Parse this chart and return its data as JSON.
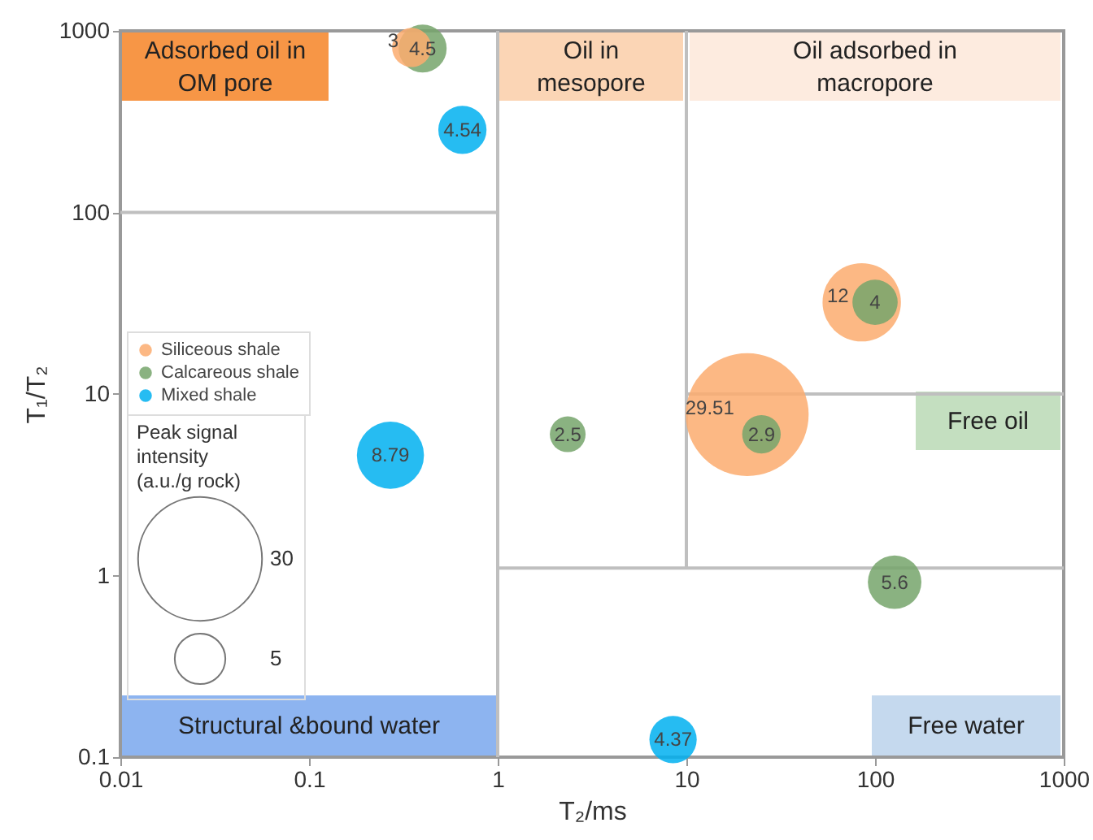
{
  "chart_data": {
    "type": "bubble",
    "xlabel": "T₂/ms",
    "ylabel": "T₁/T₂",
    "legend_title": "Peak signal\nintensity\n(a.u./g rock)",
    "log": "xy",
    "xlim": [
      0.01,
      1000
    ],
    "ylim": [
      0.1,
      1000
    ],
    "xticks": [
      0.01,
      0.1,
      1,
      10,
      100,
      1000
    ],
    "yticks": [
      0.1,
      1,
      10,
      100,
      1000
    ],
    "grid": false,
    "legend": "left",
    "size_legend": [
      30,
      5
    ],
    "series": [
      {
        "name": "Siliceous shale",
        "color": "#fbab6e",
        "x": [
          0.35,
          85,
          21
        ],
        "values": [
          810,
          32,
          7.7
        ],
        "sizes": [
          3,
          12,
          29.51
        ],
        "value_labels": [
          "3",
          "12",
          "29.51"
        ]
      },
      {
        "name": "Calcareous shale",
        "color": "#76a46b",
        "x": [
          0.4,
          100,
          25,
          2.35,
          127
        ],
        "values": [
          800,
          32,
          6,
          6,
          0.92
        ],
        "sizes": [
          4.5,
          4,
          2.9,
          2.5,
          5.6
        ],
        "value_labels": [
          "4.5",
          "4",
          "2.9",
          "2.5",
          "5.6"
        ]
      },
      {
        "name": "Mixed shale",
        "color": "#00b0f0",
        "x": [
          0.65,
          0.27,
          8.5
        ],
        "values": [
          285,
          4.6,
          0.125
        ],
        "sizes": [
          4.54,
          8.79,
          4.37
        ],
        "value_labels": [
          "4.54",
          "8.79",
          "4.37"
        ]
      },
      {
        "type": "line",
        "color": "#bfbfbf",
        "x": [
          1,
          1
        ],
        "values": [
          0.1,
          1000
        ]
      },
      {
        "type": "line",
        "color": "#bfbfbf",
        "x": [
          10,
          10
        ],
        "values": [
          1.1,
          1000
        ]
      },
      {
        "type": "line",
        "color": "#bfbfbf",
        "x": [
          0.01,
          1
        ],
        "values": [
          100,
          100
        ]
      },
      {
        "type": "line",
        "color": "#bfbfbf",
        "x": [
          1,
          1000
        ],
        "values": [
          1.1,
          1.1
        ]
      },
      {
        "type": "line",
        "color": "#bfbfbf",
        "x": [
          10,
          1000
        ],
        "values": [
          10,
          10
        ]
      }
    ],
    "annotations": [
      "Adsorbed oil in\nOM pore",
      "Oil in\nmesopore",
      "Oil adsorbed in\nmacropore",
      "Free oil",
      "Structural &bound water",
      "Free water"
    ]
  }
}
